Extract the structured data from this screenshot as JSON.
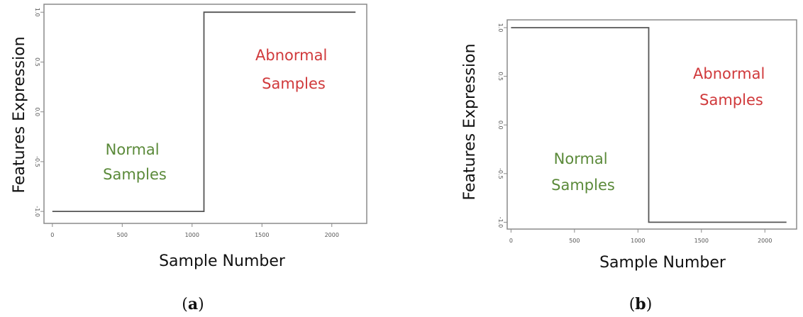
{
  "colors": {
    "normal": "#5b8a3a",
    "abnormal": "#d0393b",
    "line": "#555555",
    "frame": "#8a8a8a"
  },
  "chart_data": [
    {
      "type": "line",
      "xlabel": "Sample Number",
      "ylabel": "Features Expression",
      "x_ticks": [
        "0",
        "500",
        "1000",
        "1500",
        "2000"
      ],
      "y_ticks": [
        "-1.0",
        "-0.5",
        "0.0",
        "0.5",
        "1.0"
      ],
      "xlim": [
        -60,
        2250
      ],
      "ylim": [
        -1.12,
        1.08
      ],
      "series": [
        {
          "x": [
            0,
            1085,
            1085,
            2170
          ],
          "y": [
            -1.0,
            -1.0,
            1.0,
            1.0
          ]
        }
      ],
      "annotations": [
        {
          "text": [
            "Normal",
            "Samples"
          ],
          "color": "normal"
        },
        {
          "text": [
            "Abnormal",
            "Samples"
          ],
          "color": "abnormal"
        }
      ],
      "caption": {
        "open": "(",
        "letter": "a",
        "close": ")"
      }
    },
    {
      "type": "line",
      "xlabel": "Sample Number",
      "ylabel": "Features Expression",
      "x_ticks": [
        "0",
        "500",
        "1000",
        "1500",
        "2000"
      ],
      "y_ticks": [
        "-1.0",
        "-0.5",
        "0.0",
        "0.5",
        "1.0"
      ],
      "xlim": [
        -30,
        2250
      ],
      "ylim": [
        -1.07,
        1.08
      ],
      "series": [
        {
          "x": [
            0,
            1085,
            1085,
            2170
          ],
          "y": [
            1.0,
            1.0,
            -1.0,
            -1.0
          ]
        }
      ],
      "annotations": [
        {
          "text": [
            "Normal",
            "Samples"
          ],
          "color": "normal"
        },
        {
          "text": [
            "Abnormal",
            "Samples"
          ],
          "color": "abnormal"
        }
      ],
      "caption": {
        "open": "(",
        "letter": "b",
        "close": ")"
      }
    }
  ]
}
